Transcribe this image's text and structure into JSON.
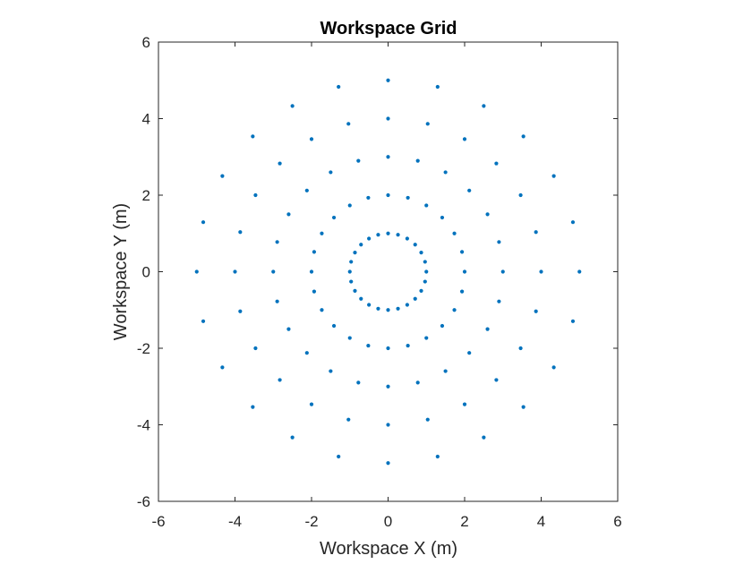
{
  "chart_data": {
    "type": "scatter",
    "title": "Workspace Grid",
    "xlabel": "Workspace X (m)",
    "ylabel": "Workspace Y (m)",
    "xlim": [
      -6,
      6
    ],
    "ylim": [
      -6,
      6
    ],
    "xticks": [
      "-6",
      "-4",
      "-2",
      "0",
      "2",
      "4",
      "6"
    ],
    "yticks": [
      "-6",
      "-4",
      "-2",
      "0",
      "2",
      "4",
      "6"
    ],
    "grid": false,
    "marker_color": "#0072BD",
    "rings": [
      {
        "radius": 1,
        "count": 24
      },
      {
        "radius": 2,
        "count": 24
      },
      {
        "radius": 3,
        "count": 24
      },
      {
        "radius": 4,
        "count": 24
      },
      {
        "radius": 5,
        "count": 24
      }
    ]
  }
}
